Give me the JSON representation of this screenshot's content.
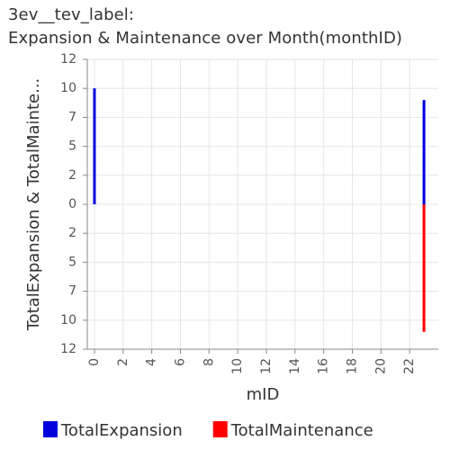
{
  "title_line1": "3ev__tev_label:",
  "title_line2": "Expansion & Maintenance over Month(monthID)",
  "chart_data": {
    "type": "bar",
    "layout": "diverging",
    "xlabel": "mID",
    "ylabel": "TotalExpansion & TotalMainte...",
    "x_ticks": [
      0,
      2,
      4,
      6,
      8,
      10,
      12,
      14,
      16,
      18,
      20,
      22
    ],
    "x_range": [
      -0.5,
      24
    ],
    "y_tick_labels": [
      "12",
      "10",
      "7",
      "5",
      "2",
      "0",
      "2",
      "5",
      "7",
      "10",
      "12"
    ],
    "y_range": [
      -12.5,
      12.5
    ],
    "grid": true,
    "legend_position": "bottom",
    "series": [
      {
        "name": "TotalExpansion",
        "color": "#0000dd",
        "direction": "up",
        "points": [
          {
            "x": 0,
            "y": 10
          },
          {
            "x": 23,
            "y": 9
          }
        ]
      },
      {
        "name": "TotalMaintenance",
        "color": "#ff0000",
        "direction": "down",
        "points": [
          {
            "x": 23,
            "y": 11
          }
        ]
      }
    ]
  }
}
